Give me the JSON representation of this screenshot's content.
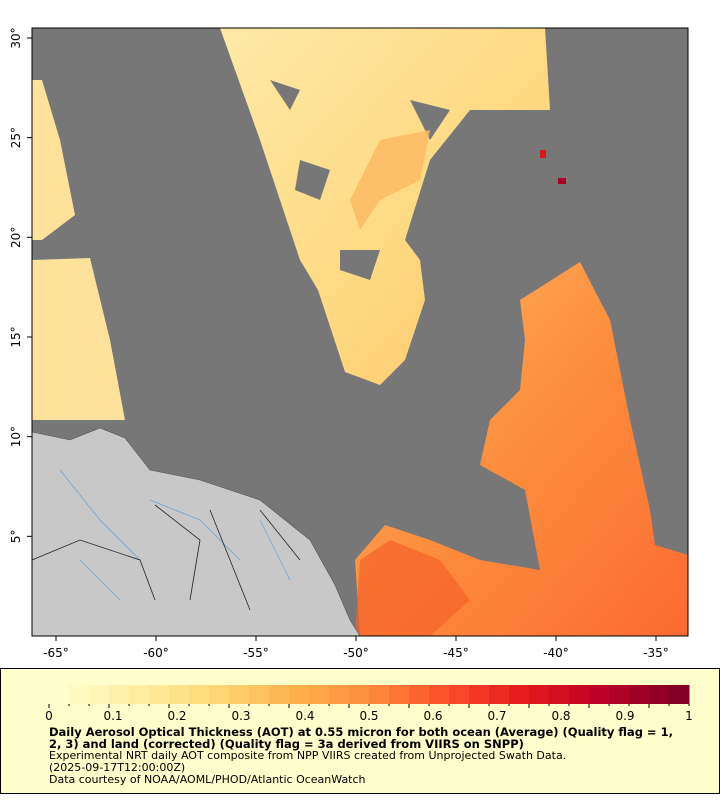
{
  "chart_data": {
    "type": "heatmap",
    "description_kind": "geographic map of aerosol optical thickness",
    "x_ticks": [
      "-65°",
      "-60°",
      "-55°",
      "-50°",
      "-45°",
      "-40°",
      "-35°"
    ],
    "y_ticks": [
      "5°",
      "10°",
      "15°",
      "20°",
      "25°",
      "30°"
    ],
    "xlim": [
      -66.2,
      -33.4
    ],
    "ylim": [
      0,
      30.5
    ],
    "colorbar": {
      "ticks": [
        "0",
        "0.1",
        "0.2",
        "0.3",
        "0.4",
        "0.5",
        "0.6",
        "0.7",
        "0.8",
        "0.9",
        "1"
      ],
      "range": [
        0,
        1
      ],
      "levels": 32,
      "colors": [
        "#ffffcc",
        "#ffeda0",
        "#fed976",
        "#feb24c",
        "#fd8d3c",
        "#fc4e2a",
        "#e31a1c",
        "#bd0026",
        "#800026"
      ]
    },
    "background_color": "#777777",
    "land_color": "#c8c8c8"
  },
  "caption": {
    "title_line1": "Daily Aerosol Optical Thickness (AOT) at 0.55 micron for both ocean (Average) (Quality flag = 1,",
    "title_line2": "2, 3) and land (corrected) (Quality flag = 3a derived from VIIRS on SNPP)",
    "subtitle": "Experimental NRT daily AOT composite from NPP VIIRS created from Unprojected Swath Data.",
    "time": "(2025-09-17T12:00:00Z)",
    "credit": "Data courtesy of NOAA/AOML/PHOD/Atlantic OceanWatch"
  }
}
